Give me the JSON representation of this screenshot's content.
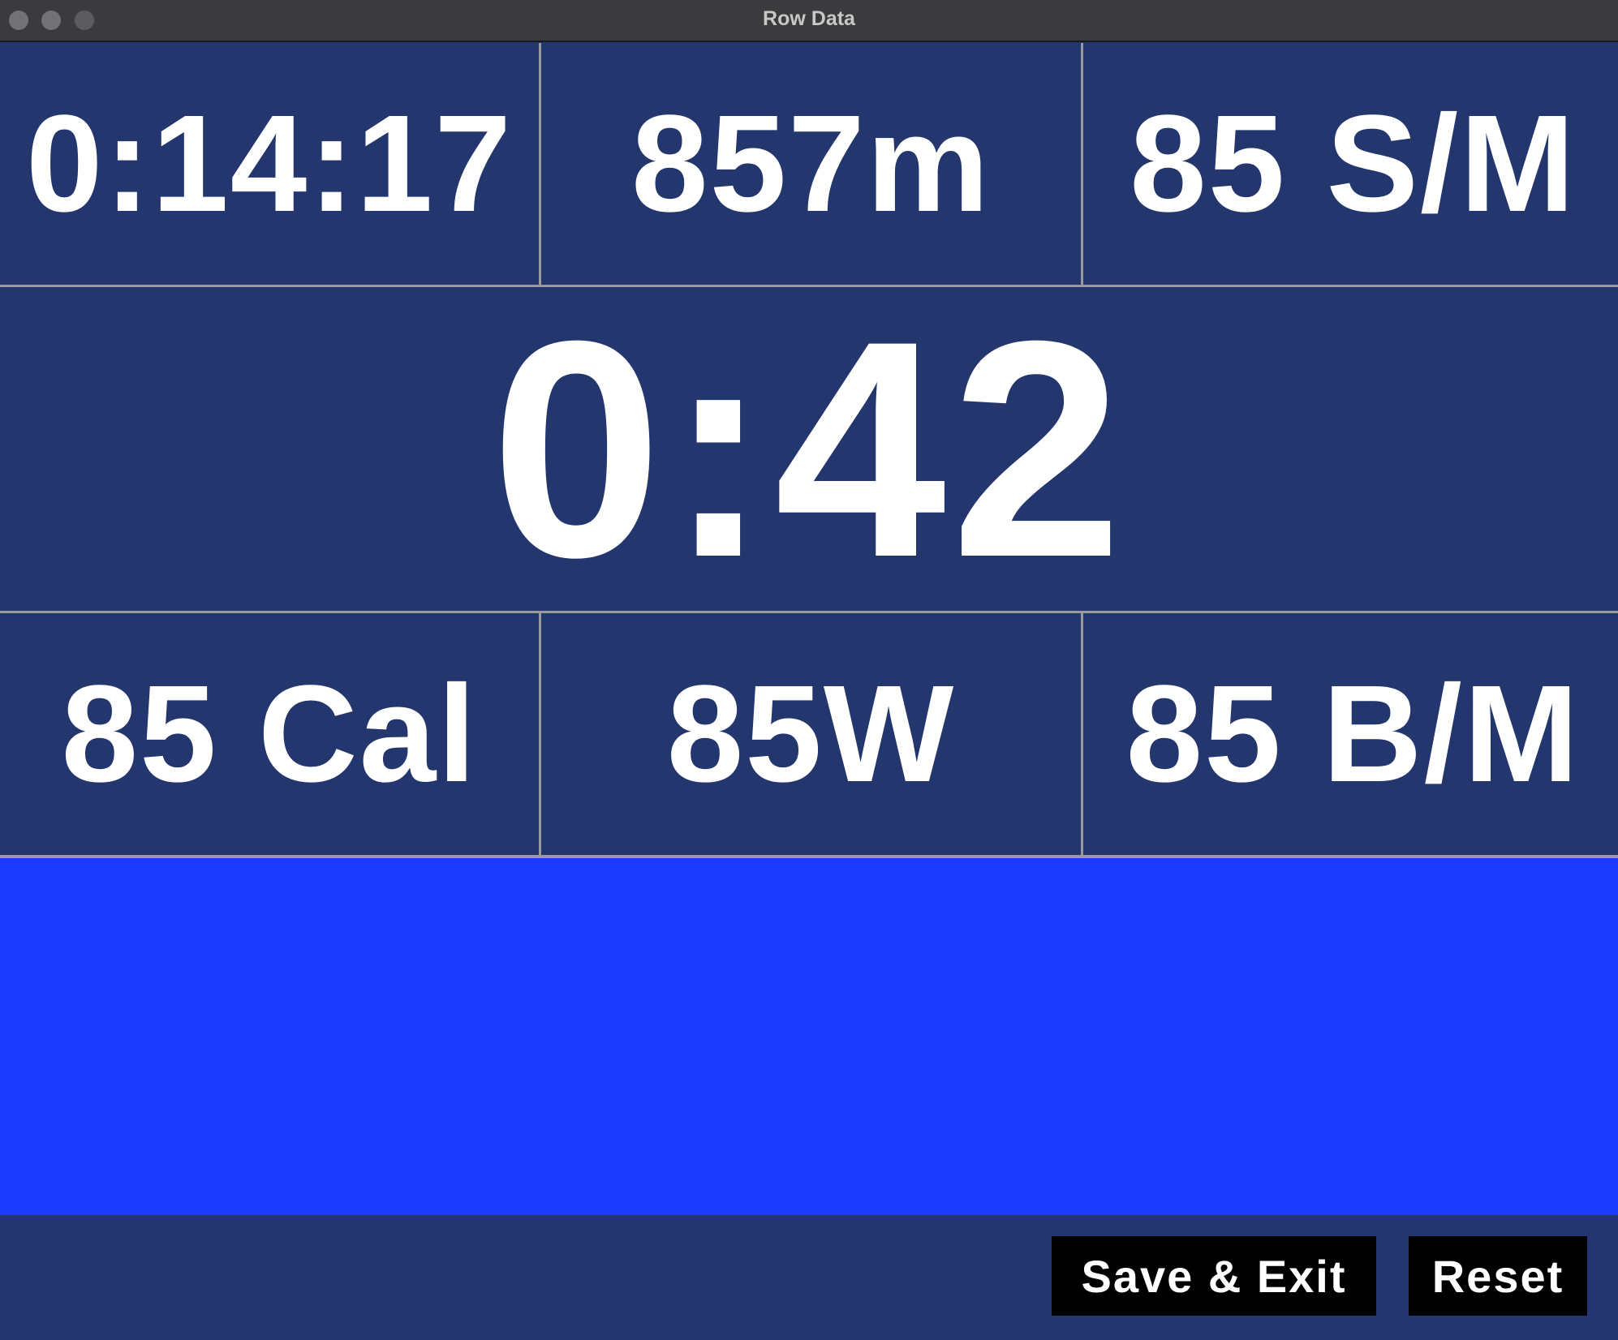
{
  "window": {
    "title": "Row Data"
  },
  "metrics": {
    "time": "0:14:17",
    "distance": "857m",
    "stroke_rate": "85 S/M",
    "pace": "0:42",
    "calories": "85 Cal",
    "power": "85W",
    "heart_rate": "85 B/M"
  },
  "buttons": {
    "save_exit": "Save & Exit",
    "reset": "Reset"
  },
  "colors": {
    "panel_background": "#24366e",
    "graph_background": "#1b3bff",
    "divider": "#9a9aa2",
    "button_background": "#000000",
    "text": "#ffffff"
  }
}
